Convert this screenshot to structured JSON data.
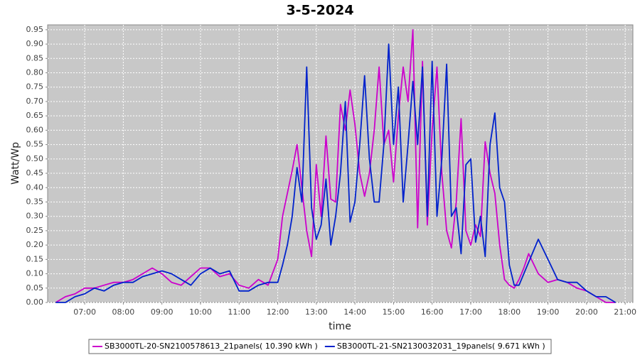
{
  "chart_data": {
    "type": "line",
    "title": "3-5-2024",
    "x_label": "time",
    "y_label": "Watt/Wp",
    "xlim": [
      6.04,
      21.2
    ],
    "ylim": [
      0,
      0.967
    ],
    "xticks": [
      {
        "value": 7,
        "label": "07:00"
      },
      {
        "value": 8,
        "label": "08:00"
      },
      {
        "value": 9,
        "label": "09:00"
      },
      {
        "value": 10,
        "label": "10:00"
      },
      {
        "value": 11,
        "label": "11:00"
      },
      {
        "value": 12,
        "label": "12:00"
      },
      {
        "value": 13,
        "label": "13:00"
      },
      {
        "value": 14,
        "label": "14:00"
      },
      {
        "value": 15,
        "label": "15:00"
      },
      {
        "value": 16,
        "label": "16:00"
      },
      {
        "value": 17,
        "label": "17:00"
      },
      {
        "value": 18,
        "label": "18:00"
      },
      {
        "value": 19,
        "label": "19:00"
      },
      {
        "value": 20,
        "label": "20:00"
      },
      {
        "value": 21,
        "label": "21:00"
      }
    ],
    "yticks": [
      {
        "value": 0,
        "label": "0.00"
      },
      0.05,
      {
        "value": 0.1,
        "label": "0.10"
      },
      0.15,
      {
        "value": 0.2,
        "label": "0.20"
      },
      0.25,
      {
        "value": 0.3,
        "label": "0.30"
      },
      0.35,
      {
        "value": 0.4,
        "label": "0.40"
      },
      0.45,
      {
        "value": 0.5,
        "label": "0.50"
      },
      0.55,
      {
        "value": 0.6,
        "label": "0.60"
      },
      0.65,
      {
        "value": 0.7,
        "label": "0.70"
      },
      0.75,
      {
        "value": 0.8,
        "label": "0.80"
      },
      0.85,
      {
        "value": 0.9,
        "label": "0.90"
      },
      0.95
    ],
    "grid": true,
    "legend": "bottom",
    "x": [
      6.25,
      6.5,
      6.75,
      7,
      7.25,
      7.5,
      7.75,
      8,
      8.25,
      8.5,
      8.75,
      9,
      9.25,
      9.5,
      9.75,
      10,
      10.25,
      10.5,
      10.75,
      11,
      11.25,
      11.5,
      11.75,
      12,
      12.125,
      12.25,
      12.375,
      12.5,
      12.625,
      12.75,
      12.875,
      13,
      13.125,
      13.25,
      13.375,
      13.5,
      13.625,
      13.75,
      13.875,
      14,
      14.125,
      14.25,
      14.375,
      14.5,
      14.625,
      14.75,
      14.875,
      15,
      15.125,
      15.25,
      15.375,
      15.5,
      15.625,
      15.75,
      15.875,
      16,
      16.125,
      16.25,
      16.375,
      16.5,
      16.625,
      16.75,
      16.875,
      17,
      17.125,
      17.25,
      17.375,
      17.5,
      17.625,
      17.75,
      17.875,
      18,
      18.125,
      18.25,
      18.375,
      18.5,
      18.75,
      19,
      19.25,
      19.5,
      19.75,
      20,
      20.25,
      20.5,
      20.75
    ],
    "series": [
      {
        "name": "SB3000TL-20-SN2100578613_21panels( 10.390 kWh )",
        "color": "#cc00cc",
        "values": [
          0,
          0.02,
          0.03,
          0.05,
          0.05,
          0.06,
          0.07,
          0.07,
          0.08,
          0.1,
          0.12,
          0.1,
          0.07,
          0.06,
          0.09,
          0.12,
          0.12,
          0.09,
          0.1,
          0.06,
          0.05,
          0.08,
          0.06,
          0.15,
          0.3,
          0.38,
          0.46,
          0.55,
          0.4,
          0.25,
          0.16,
          0.48,
          0.3,
          0.58,
          0.36,
          0.35,
          0.69,
          0.6,
          0.74,
          0.62,
          0.45,
          0.37,
          0.45,
          0.6,
          0.82,
          0.55,
          0.6,
          0.42,
          0.65,
          0.82,
          0.7,
          0.95,
          0.26,
          0.84,
          0.27,
          0.6,
          0.82,
          0.45,
          0.25,
          0.19,
          0.35,
          0.64,
          0.25,
          0.2,
          0.27,
          0.23,
          0.56,
          0.45,
          0.38,
          0.2,
          0.08,
          0.06,
          0.05,
          0.08,
          0.12,
          0.17,
          0.1,
          0.07,
          0.08,
          0.07,
          0.05,
          0.04,
          0.02,
          0,
          0
        ]
      },
      {
        "name": "SB3000TL-21-SN2130032031_19panels( 9.671 kWh )",
        "color": "#0022cc",
        "values": [
          0,
          0,
          0.02,
          0.03,
          0.05,
          0.04,
          0.06,
          0.07,
          0.07,
          0.09,
          0.1,
          0.11,
          0.1,
          0.08,
          0.06,
          0.1,
          0.12,
          0.1,
          0.11,
          0.04,
          0.04,
          0.06,
          0.07,
          0.07,
          0.13,
          0.2,
          0.3,
          0.47,
          0.35,
          0.82,
          0.33,
          0.22,
          0.27,
          0.43,
          0.2,
          0.3,
          0.45,
          0.7,
          0.28,
          0.35,
          0.55,
          0.79,
          0.5,
          0.35,
          0.35,
          0.55,
          0.9,
          0.55,
          0.75,
          0.35,
          0.55,
          0.77,
          0.55,
          0.82,
          0.3,
          0.84,
          0.3,
          0.5,
          0.83,
          0.3,
          0.33,
          0.17,
          0.48,
          0.5,
          0.21,
          0.3,
          0.16,
          0.55,
          0.66,
          0.4,
          0.35,
          0.13,
          0.06,
          0.06,
          0.1,
          0.14,
          0.22,
          0.15,
          0.08,
          0.07,
          0.07,
          0.04,
          0.02,
          0.02,
          0
        ]
      }
    ]
  }
}
